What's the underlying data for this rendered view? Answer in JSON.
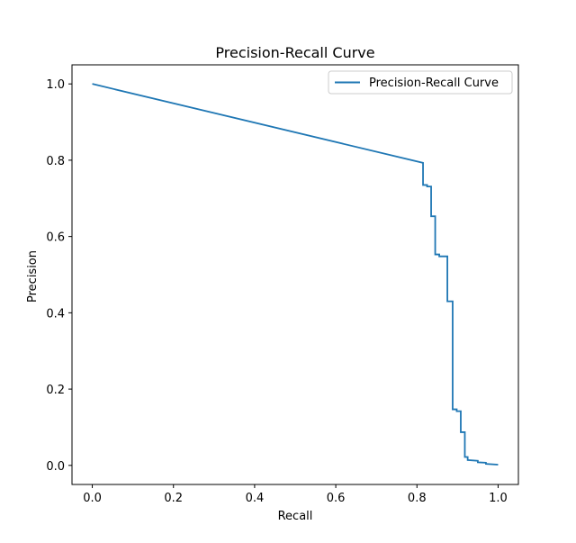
{
  "chart_data": {
    "type": "line",
    "title": "Precision-Recall Curve",
    "xlabel": "Recall",
    "ylabel": "Precision",
    "xlim": [
      -0.05,
      1.05
    ],
    "ylim": [
      -0.05,
      1.05
    ],
    "xticks": [
      0.0,
      0.2,
      0.4,
      0.6,
      0.8,
      1.0
    ],
    "yticks": [
      0.0,
      0.2,
      0.4,
      0.6,
      0.8,
      1.0
    ],
    "xtick_labels": [
      "0.0",
      "0.2",
      "0.4",
      "0.6",
      "0.8",
      "1.0"
    ],
    "ytick_labels": [
      "0.0",
      "0.2",
      "0.4",
      "0.6",
      "0.8",
      "1.0"
    ],
    "grid": false,
    "legend": {
      "position": "upper-right",
      "entries": [
        "Precision-Recall Curve"
      ]
    },
    "series": [
      {
        "name": "Precision-Recall Curve",
        "color": "#1f77b4",
        "x": [
          0.0,
          0.815,
          0.815,
          0.825,
          0.825,
          0.835,
          0.835,
          0.845,
          0.845,
          0.855,
          0.855,
          0.875,
          0.875,
          0.888,
          0.888,
          0.898,
          0.898,
          0.908,
          0.908,
          0.918,
          0.918,
          0.925,
          0.925,
          0.95,
          0.95,
          0.97,
          0.97,
          1.0
        ],
        "y": [
          1.0,
          0.793,
          0.735,
          0.735,
          0.731,
          0.731,
          0.653,
          0.653,
          0.553,
          0.553,
          0.548,
          0.548,
          0.43,
          0.43,
          0.147,
          0.147,
          0.142,
          0.142,
          0.087,
          0.087,
          0.022,
          0.022,
          0.014,
          0.012,
          0.008,
          0.007,
          0.004,
          0.002
        ]
      }
    ]
  }
}
